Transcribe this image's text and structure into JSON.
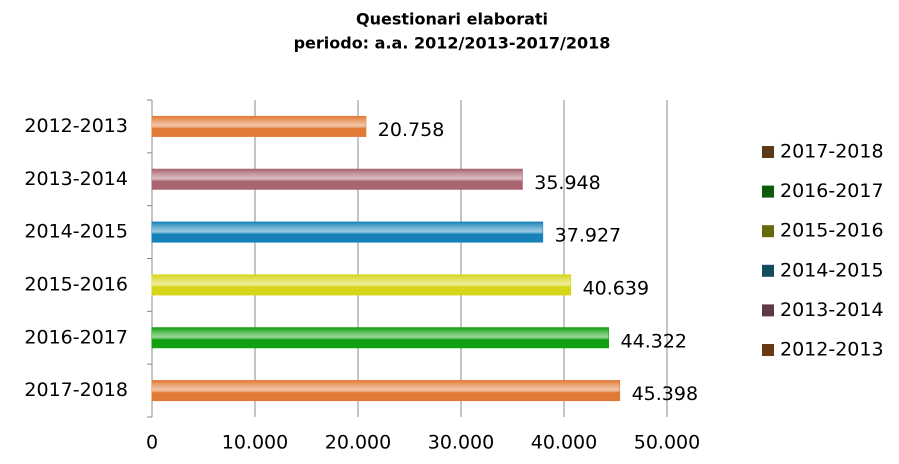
{
  "chart_data": {
    "type": "hbar",
    "title": "Questionari elaborati",
    "subtitle": "periodo: a.a. 2012/2013-2017/2018",
    "categories": [
      "2012-2013",
      "2013-2014",
      "2014-2015",
      "2015-2016",
      "2016-2017",
      "2017-2018"
    ],
    "values": [
      20758,
      35948,
      37927,
      40639,
      44322,
      45398
    ],
    "value_labels": [
      "20.758",
      "35.948",
      "37.927",
      "40.639",
      "44.322",
      "45.398"
    ],
    "colors": [
      "#e07a35",
      "#a8656f",
      "#1782b8",
      "#d6d618",
      "#12a012",
      "#e07a35"
    ],
    "xlim": [
      0,
      50000
    ],
    "xticks": [
      0,
      {
        "value": 10000,
        "label": "10.000"
      },
      {
        "value": 20000,
        "label": "20.000"
      },
      {
        "value": 30000,
        "label": "30.000"
      },
      {
        "value": 40000,
        "label": "40.000"
      },
      {
        "value": 50000,
        "label": "50.000"
      }
    ],
    "grid": true,
    "legend": [
      {
        "name": "2017-2018",
        "color": "#5a3a1e"
      },
      {
        "name": "2016-2017",
        "color": "#0d5a0d"
      },
      {
        "name": "2015-2016",
        "color": "#66660a"
      },
      {
        "name": "2014-2015",
        "color": "#124a5e"
      },
      {
        "name": "2013-2014",
        "color": "#5e3a42"
      },
      {
        "name": "2012-2013",
        "color": "#6a3a14"
      }
    ]
  }
}
